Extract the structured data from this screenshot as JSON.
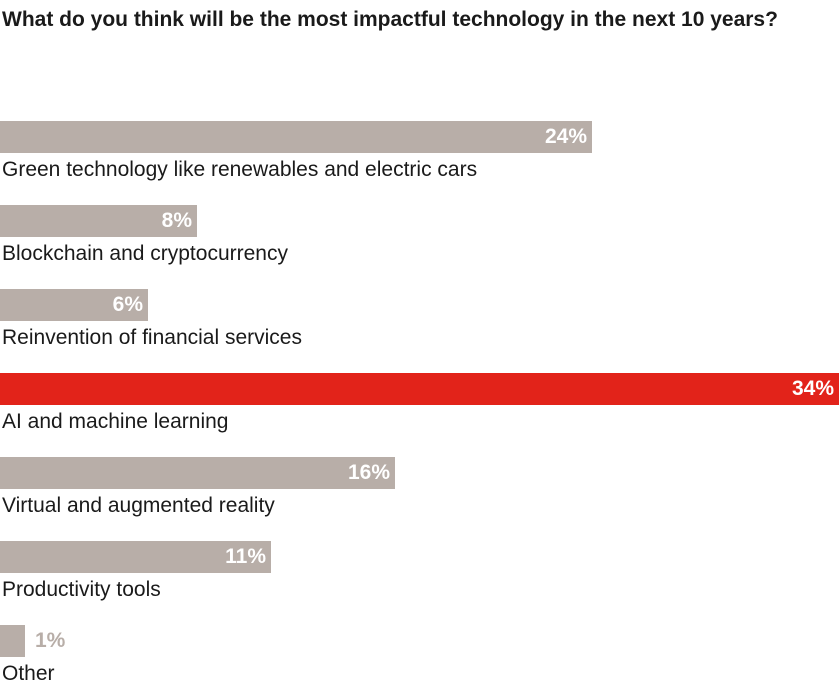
{
  "chart_data": {
    "type": "bar",
    "orientation": "horizontal",
    "title": "What do you think will be the most impactful technology in the next 10 years?",
    "categories": [
      "Green technology like renewables and electric cars",
      "Blockchain and cryptocurrency",
      "Reinvention of financial services",
      "AI and machine learning",
      "Virtual and augmented reality",
      "Productivity tools",
      "Other"
    ],
    "values": [
      24,
      8,
      6,
      34,
      16,
      11,
      1
    ],
    "value_labels": [
      "24%",
      "8%",
      "6%",
      "34%",
      "16%",
      "11%",
      "1%"
    ],
    "unit": "%",
    "xlim": [
      0,
      34
    ],
    "highlight_index": 3,
    "colors": {
      "bar": "#b8aea8",
      "highlight": "#e2231a",
      "value_text": "#ffffff",
      "value_text_outside": "#b8aea8"
    },
    "xlabel": "",
    "ylabel": "",
    "grid": false,
    "legend": "none"
  }
}
